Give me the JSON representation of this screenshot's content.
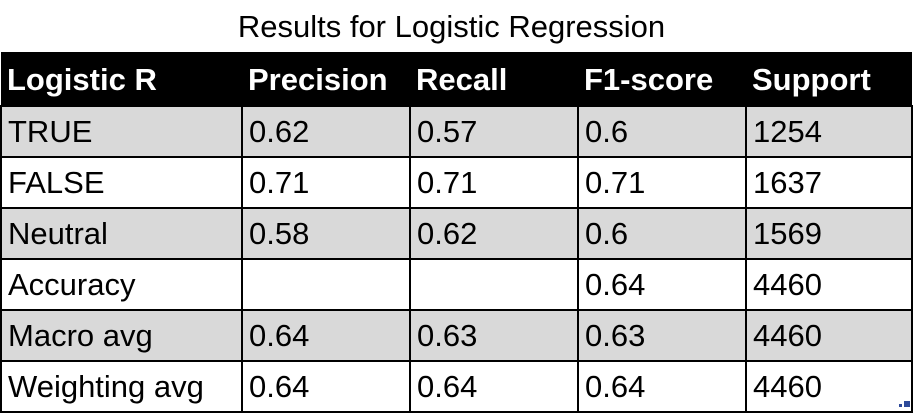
{
  "title": "Results for Logistic Regression",
  "columns": [
    "Logistic R",
    "Precision",
    "Recall",
    "F1-score",
    "Support"
  ],
  "rows": [
    {
      "label": "TRUE",
      "precision": "0.62",
      "recall": "0.57",
      "f1": "0.6",
      "support": "1254",
      "shaded": true
    },
    {
      "label": "FALSE",
      "precision": "0.71",
      "recall": "0.71",
      "f1": "0.71",
      "support": "1637",
      "shaded": false
    },
    {
      "label": "Neutral",
      "precision": "0.58",
      "recall": "0.62",
      "f1": "0.6",
      "support": "1569",
      "shaded": true
    },
    {
      "label": "Accuracy",
      "precision": "",
      "recall": "",
      "f1": "0.64",
      "support": "4460",
      "shaded": false
    },
    {
      "label": "Macro avg",
      "precision": "0.64",
      "recall": "0.63",
      "f1": "0.63",
      "support": "4460",
      "shaded": true
    },
    {
      "label": "Weighting avg",
      "precision": "0.64",
      "recall": "0.64",
      "f1": "0.64",
      "support": "4460",
      "shaded": false
    }
  ],
  "colors": {
    "header_bg": "#000000",
    "header_text": "#ffffff",
    "shaded_row": "#d9d9d9",
    "plain_row": "#ffffff"
  }
}
